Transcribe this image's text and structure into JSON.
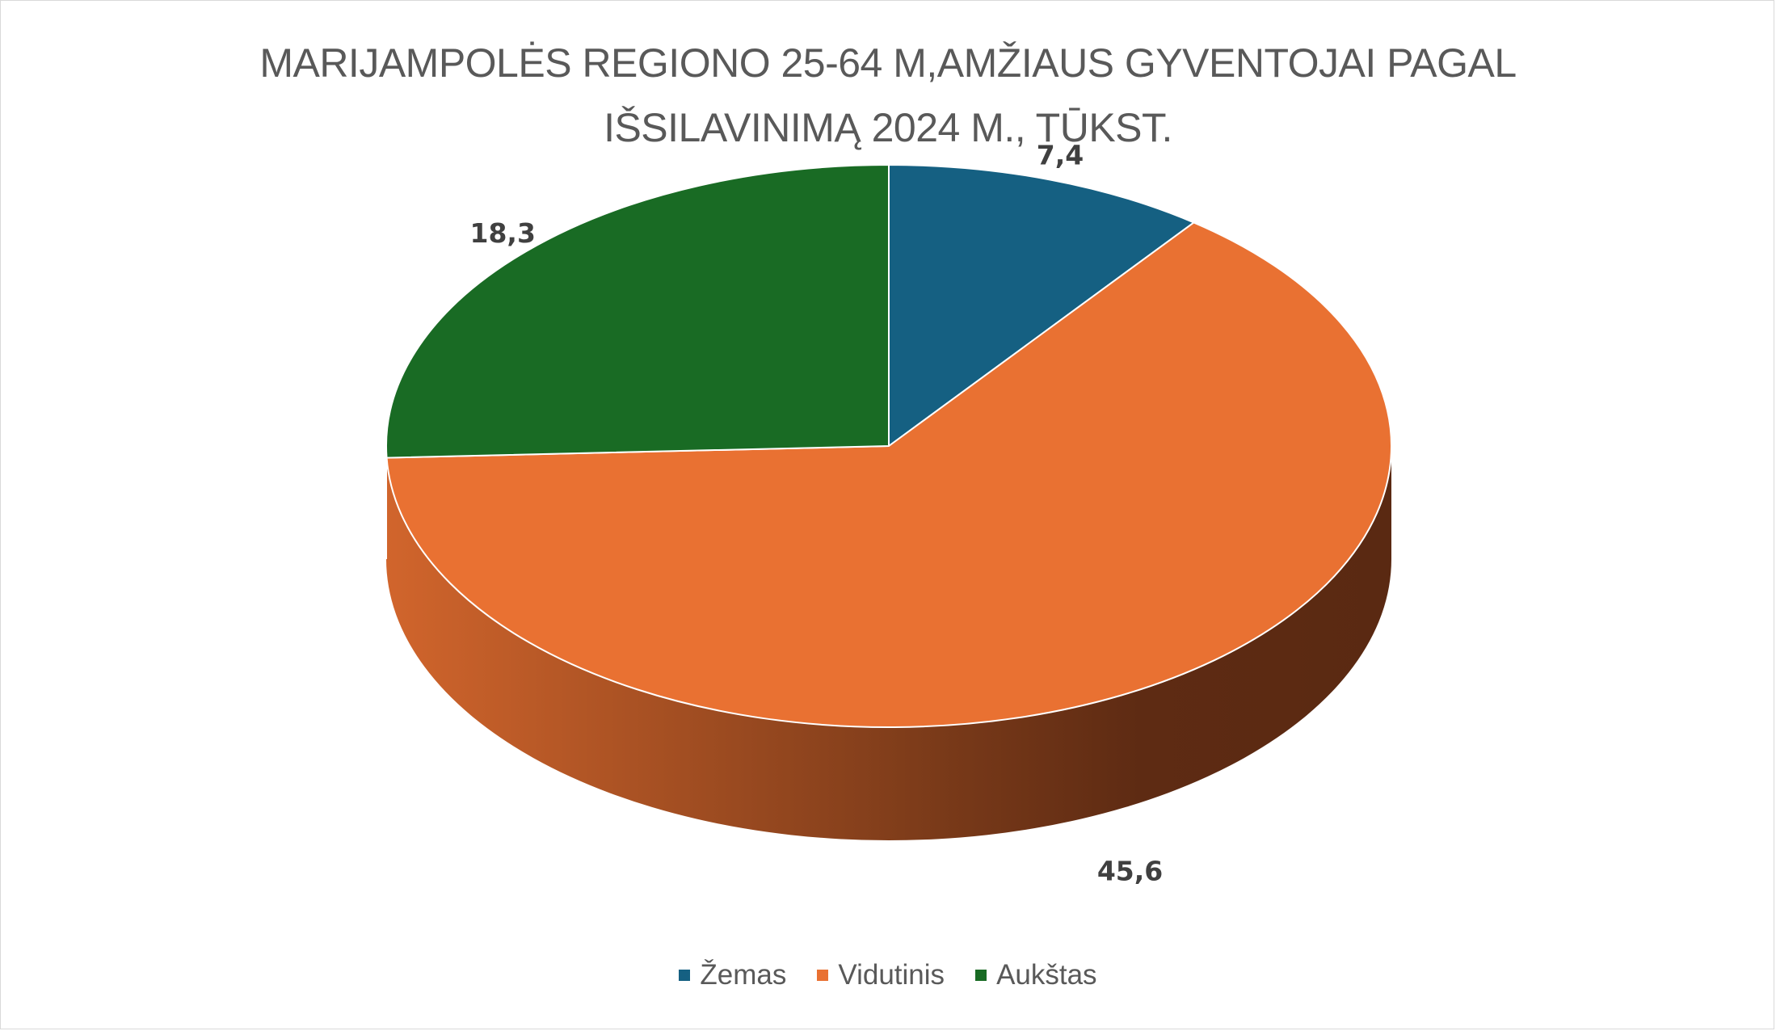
{
  "chart_data": {
    "type": "pie",
    "title_lines": [
      "MARIJAMPOLĖS REGIONO 25-64 M,AMŽIAUS GYVENTOJAI PAGAL",
      "IŠSILAVINIMĄ 2024 M., TŪKST."
    ],
    "categories": [
      "Žemas",
      "Vidutinis",
      "Aukštas"
    ],
    "values": [
      7.4,
      45.6,
      18.3
    ],
    "data_labels": [
      "7,4",
      "45,6",
      "18,3"
    ],
    "colors": [
      "#156082",
      "#E97132",
      "#196B24"
    ],
    "legend_position": "bottom",
    "style": "3d"
  }
}
